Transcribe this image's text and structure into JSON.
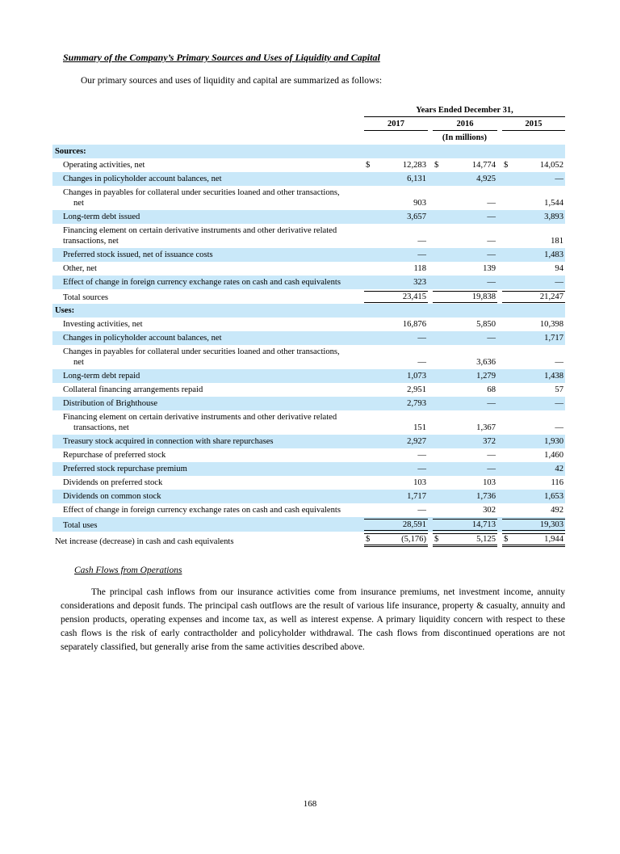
{
  "page": {
    "section_title": "Summary of the Company’s Primary Sources and Uses of Liquidity and Capital",
    "intro": "Our primary sources and uses of liquidity and capital are summarized as follows:",
    "page_number": "168"
  },
  "table": {
    "header": {
      "years_title": "Years Ended December 31,",
      "columns": [
        "2017",
        "2016",
        "2015"
      ],
      "units": "(In millions)"
    },
    "rows": [
      {
        "label": "Sources:",
        "type": "section",
        "shade": true
      },
      {
        "label": "Operating activities, net",
        "dollar": true,
        "values": [
          "12,283",
          "14,774",
          "14,052"
        ],
        "shade": false
      },
      {
        "label": "Changes in policyholder account balances, net",
        "values": [
          "6,131",
          "4,925",
          "—"
        ],
        "shade": true
      },
      {
        "label": "Changes in payables for collateral under securities loaned and other transactions,",
        "label2": "net",
        "indent2": true,
        "values": [
          "903",
          "—",
          "1,544"
        ],
        "shade": false
      },
      {
        "label": "Long-term debt issued",
        "values": [
          "3,657",
          "—",
          "3,893"
        ],
        "shade": true
      },
      {
        "label": "Financing element on certain derivative instruments and other derivative related",
        "label2": "transactions, net",
        "indent2": false,
        "values": [
          "—",
          "—",
          "181"
        ],
        "shade": false
      },
      {
        "label": "Preferred stock issued, net of issuance costs",
        "values": [
          "—",
          "—",
          "1,483"
        ],
        "shade": true
      },
      {
        "label": "Other, net",
        "values": [
          "118",
          "139",
          "94"
        ],
        "shade": false
      },
      {
        "label": "Effect of change in foreign currency exchange rates on cash and cash equivalents",
        "values": [
          "323",
          "—",
          "—"
        ],
        "shade": true
      },
      {
        "label": "Total sources",
        "values": [
          "23,415",
          "19,838",
          "21,247"
        ],
        "shade": false,
        "total": true
      },
      {
        "label": "Uses:",
        "type": "section",
        "shade": true
      },
      {
        "label": "Investing activities, net",
        "values": [
          "16,876",
          "5,850",
          "10,398"
        ],
        "shade": false
      },
      {
        "label": "Changes in policyholder account balances, net",
        "values": [
          "—",
          "—",
          "1,717"
        ],
        "shade": true
      },
      {
        "label": "Changes in payables for collateral under securities loaned and other transactions,",
        "label2": "net",
        "indent2": true,
        "values": [
          "—",
          "3,636",
          "—"
        ],
        "shade": false
      },
      {
        "label": "Long-term debt repaid",
        "values": [
          "1,073",
          "1,279",
          "1,438"
        ],
        "shade": true
      },
      {
        "label": "Collateral financing arrangements repaid",
        "values": [
          "2,951",
          "68",
          "57"
        ],
        "shade": false
      },
      {
        "label": "Distribution of Brighthouse",
        "values": [
          "2,793",
          "—",
          "—"
        ],
        "shade": true
      },
      {
        "label": "Financing element on certain derivative instruments and other derivative related",
        "label2": "transactions, net",
        "indent2": true,
        "values": [
          "151",
          "1,367",
          "—"
        ],
        "shade": false
      },
      {
        "label": "Treasury stock acquired in connection with share repurchases",
        "values": [
          "2,927",
          "372",
          "1,930"
        ],
        "shade": true
      },
      {
        "label": "Repurchase of preferred stock",
        "values": [
          "—",
          "—",
          "1,460"
        ],
        "shade": false
      },
      {
        "label": "Preferred stock repurchase premium",
        "values": [
          "—",
          "—",
          "42"
        ],
        "shade": true
      },
      {
        "label": "Dividends on preferred stock",
        "values": [
          "103",
          "103",
          "116"
        ],
        "shade": false
      },
      {
        "label": "Dividends on common stock",
        "values": [
          "1,717",
          "1,736",
          "1,653"
        ],
        "shade": true
      },
      {
        "label": "Effect of change in foreign currency exchange rates on cash and cash equivalents",
        "values": [
          "—",
          "302",
          "492"
        ],
        "shade": false
      },
      {
        "label": "Total uses",
        "values": [
          "28,591",
          "14,713",
          "19,303"
        ],
        "shade": true,
        "total": true
      },
      {
        "label": "Net increase (decrease) in cash and cash equivalents",
        "noindent": true,
        "dollar": true,
        "values": [
          "(5,176)",
          "5,125",
          "1,944"
        ],
        "shade": false,
        "grand": true
      }
    ]
  },
  "footer_section": {
    "heading": "Cash Flows from Operations",
    "body": "The principal cash inflows from our insurance activities come from insurance premiums, net investment income, annuity considerations and deposit funds. The principal cash outflows are the result of various life insurance, property & casualty, annuity and pension products, operating expenses and income tax, as well as interest expense. A primary liquidity concern with respect to these cash flows is the risk of early contractholder and policyholder withdrawal. The cash flows from discontinued operations are not separately classified, but generally arise from the same activities described above."
  },
  "colors": {
    "stripe": "#c9e8f9",
    "text": "#000000"
  }
}
